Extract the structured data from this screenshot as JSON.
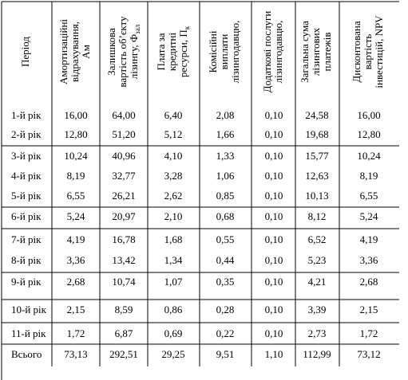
{
  "table": {
    "headers": [
      {
        "lines": [
          "Період"
        ]
      },
      {
        "lines": [
          "Амортизаційні",
          "відрахування,",
          "Ам"
        ]
      },
      {
        "lines": [
          "Залишкова",
          "вартість об’єкту",
          "лізингу, Ф"
        ],
        "sub": "зал"
      },
      {
        "lines": [
          "Плата за",
          "кредитні",
          "ресурси, П"
        ],
        "sub": "к"
      },
      {
        "lines": [
          "Комісійні",
          "виплати",
          "лізингодавцю,"
        ]
      },
      {
        "lines": [
          "Додаткові послуги",
          "лізингодавцю,"
        ]
      },
      {
        "lines": [
          "Загальна сума",
          "лізингових",
          "платежів"
        ]
      },
      {
        "lines": [
          "Дисконтована",
          "вартість",
          "інвестицій, NPV"
        ]
      }
    ],
    "rows": [
      [
        "1-й рік",
        "16,00",
        "64,00",
        "6,40",
        "2,08",
        "0,10",
        "24,58",
        "16,00"
      ],
      [
        "2-й рік",
        "12,80",
        "51,20",
        "5,12",
        "1,66",
        "0,10",
        "19,68",
        "12,80"
      ],
      [
        "3-й рік",
        "10,24",
        "40,96",
        "4,10",
        "1,33",
        "0,10",
        "15,77",
        "10,24"
      ],
      [
        "4-й рік",
        "8,19",
        "32,77",
        "3,28",
        "1,06",
        "0,10",
        "12,63",
        "8,19"
      ],
      [
        "5-й рік",
        "6,55",
        "26,21",
        "2,62",
        "0,85",
        "0,10",
        "10,13",
        "6,55"
      ],
      [
        "6-й рік",
        "5,24",
        "20,97",
        "2,10",
        "0,68",
        "0,10",
        "8,12",
        "5,24"
      ],
      [
        "7-й рік",
        "4,19",
        "16,78",
        "1,68",
        "0,55",
        "0,10",
        "6,52",
        "4,19"
      ],
      [
        "8-й рік",
        "3,36",
        "13,42",
        "1,34",
        "0,44",
        "0,10",
        "5,23",
        "3,36"
      ],
      [
        "9-й рік",
        "2,68",
        "10,74",
        "1,07",
        "0,35",
        "0,10",
        "4,21",
        "2,68"
      ],
      [
        "10-й рік",
        "2,15",
        "8,59",
        "0,86",
        "0,28",
        "0,10",
        "3,39",
        "2,15"
      ],
      [
        "11-й рік",
        "1,72",
        "6,87",
        "0,69",
        "0,22",
        "0,10",
        "2,73",
        "1,72"
      ],
      [
        "Всього",
        "73,13",
        "292,51",
        "29,25",
        "9,51",
        "1,10",
        "112,99",
        "73,12"
      ]
    ]
  }
}
